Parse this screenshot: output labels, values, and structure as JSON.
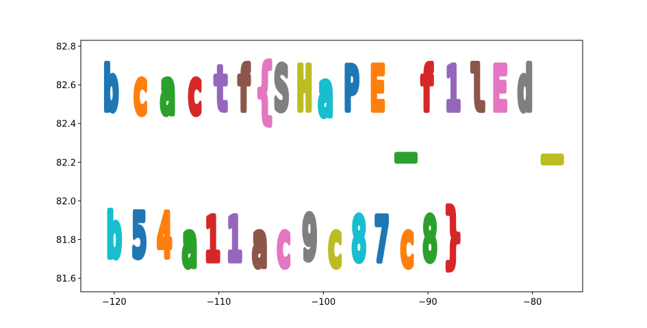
{
  "chart_data": {
    "type": "scatter",
    "title": "",
    "xlabel": "",
    "ylabel": "",
    "xlim": [
      -123.2,
      -75.2
    ],
    "ylim": [
      81.53,
      82.83
    ],
    "xticks": [
      -120,
      -110,
      -100,
      -90,
      -80
    ],
    "xtick_labels": [
      "−120",
      "−110",
      "−100",
      "−90",
      "−80"
    ],
    "yticks": [
      81.6,
      81.8,
      82.0,
      82.2,
      82.4,
      82.6,
      82.8
    ],
    "ytick_labels": [
      "81.6",
      "81.8",
      "82.0",
      "82.2",
      "82.4",
      "82.6",
      "82.8"
    ],
    "grid": false,
    "legend": false,
    "note_text_shape": "Scatter points of each series trace the shape of one character",
    "glyphs": [
      {
        "char": "b",
        "x": -120.3,
        "y": 82.58,
        "color": "#1f77b4"
      },
      {
        "char": "c",
        "x": -117.5,
        "y": 82.56,
        "color": "#ff7f0e"
      },
      {
        "char": "a",
        "x": -114.9,
        "y": 82.56,
        "color": "#2ca02c"
      },
      {
        "char": "c",
        "x": -112.3,
        "y": 82.56,
        "color": "#d62728"
      },
      {
        "char": "t",
        "x": -109.8,
        "y": 82.58,
        "color": "#9467bd"
      },
      {
        "char": "f",
        "x": -107.6,
        "y": 82.58,
        "color": "#8c564b"
      },
      {
        "char": "{",
        "x": -105.6,
        "y": 82.57,
        "color": "#e377c2"
      },
      {
        "char": "S",
        "x": -104.0,
        "y": 82.58,
        "color": "#7f7f7f"
      },
      {
        "char": "H",
        "x": -101.8,
        "y": 82.58,
        "color": "#bcbd22"
      },
      {
        "char": "a",
        "x": -99.8,
        "y": 82.55,
        "color": "#17becf"
      },
      {
        "char": "P",
        "x": -97.3,
        "y": 82.58,
        "color": "#1f77b4"
      },
      {
        "char": "E",
        "x": -94.8,
        "y": 82.58,
        "color": "#ff7f0e"
      },
      {
        "char": "_",
        "x": -92.1,
        "y": 82.39,
        "color": "#2ca02c"
      },
      {
        "char": "f",
        "x": -90.1,
        "y": 82.58,
        "color": "#d62728"
      },
      {
        "char": "1",
        "x": -87.6,
        "y": 82.58,
        "color": "#9467bd"
      },
      {
        "char": "l",
        "x": -85.2,
        "y": 82.58,
        "color": "#8c564b"
      },
      {
        "char": "E",
        "x": -83.1,
        "y": 82.58,
        "color": "#e377c2"
      },
      {
        "char": "d",
        "x": -80.7,
        "y": 82.58,
        "color": "#7f7f7f"
      },
      {
        "char": "_",
        "x": -78.1,
        "y": 82.38,
        "color": "#bcbd22"
      },
      {
        "char": "b",
        "x": -120.0,
        "y": 81.82,
        "color": "#17becf"
      },
      {
        "char": "5",
        "x": -117.6,
        "y": 81.82,
        "color": "#1f77b4"
      },
      {
        "char": "4",
        "x": -115.2,
        "y": 81.82,
        "color": "#ff7f0e"
      },
      {
        "char": "a",
        "x": -112.8,
        "y": 81.77,
        "color": "#2ca02c"
      },
      {
        "char": "1",
        "x": -110.6,
        "y": 81.8,
        "color": "#d62728"
      },
      {
        "char": "1",
        "x": -108.5,
        "y": 81.8,
        "color": "#9467bd"
      },
      {
        "char": "a",
        "x": -106.1,
        "y": 81.77,
        "color": "#8c564b"
      },
      {
        "char": "c",
        "x": -103.8,
        "y": 81.77,
        "color": "#e377c2"
      },
      {
        "char": "9",
        "x": -101.3,
        "y": 81.81,
        "color": "#7f7f7f"
      },
      {
        "char": "c",
        "x": -98.9,
        "y": 81.77,
        "color": "#bcbd22"
      },
      {
        "char": "8",
        "x": -96.6,
        "y": 81.8,
        "color": "#17becf"
      },
      {
        "char": "7",
        "x": -94.4,
        "y": 81.8,
        "color": "#1f77b4"
      },
      {
        "char": "c",
        "x": -92.0,
        "y": 81.77,
        "color": "#ff7f0e"
      },
      {
        "char": "8",
        "x": -89.8,
        "y": 81.8,
        "color": "#2ca02c"
      },
      {
        "char": "}",
        "x": -87.6,
        "y": 81.82,
        "color": "#d62728"
      }
    ]
  }
}
